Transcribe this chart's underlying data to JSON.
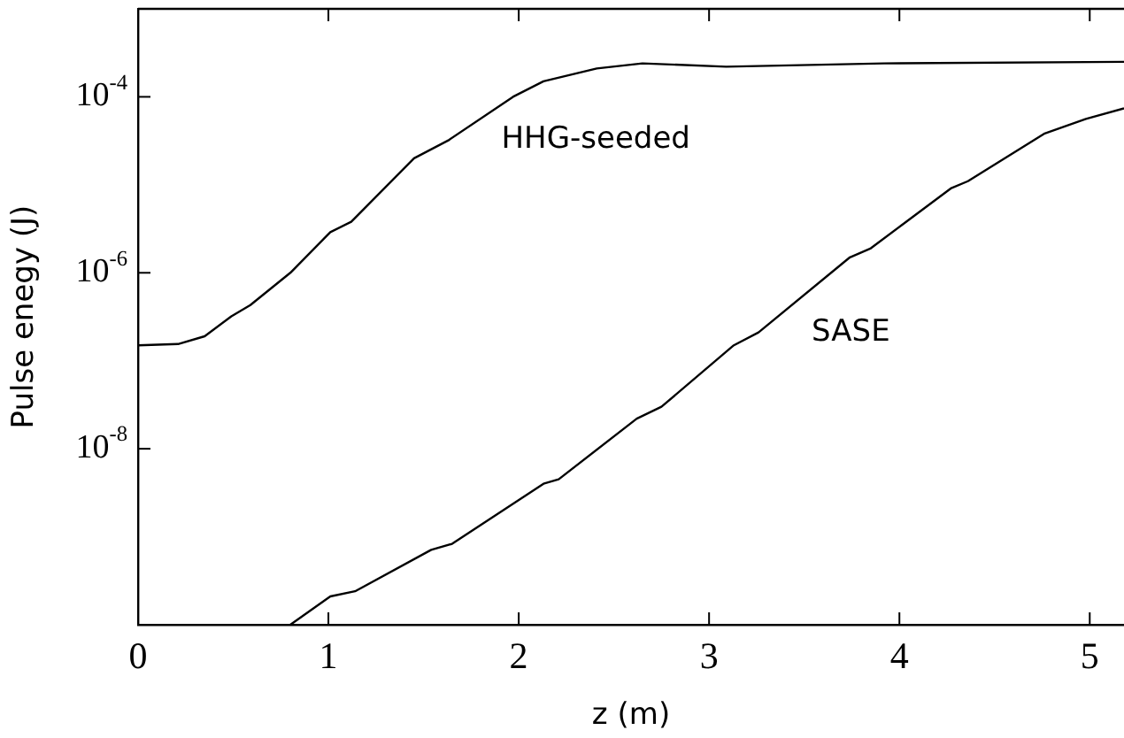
{
  "chart_data": {
    "type": "line",
    "xlabel": "z (m)",
    "ylabel": "Pulse enegy (J)",
    "log": "y",
    "grid": false,
    "legend": false,
    "marker": "none",
    "line_style": "solid",
    "xlim": [
      0,
      5.18
    ],
    "xticks": [
      0,
      1,
      2,
      3,
      4,
      5
    ],
    "ylim": [
      1e-10,
      0.001
    ],
    "yticks": [
      {
        "value": 1e-08,
        "label": "10$^{-8}$"
      },
      {
        "value": 1e-06,
        "label": "10$^{-6}$"
      },
      {
        "value": 0.0001,
        "label": "10$^{-4}$"
      }
    ],
    "series": [
      {
        "name": "HHG-seeded",
        "color": "#000000",
        "x": [
          0,
          0.21,
          0.35,
          0.49,
          0.59,
          0.8,
          1.01,
          1.12,
          1.45,
          1.63,
          1.97,
          2.13,
          2.41,
          2.65,
          3.09,
          3.92,
          5.18
        ],
        "values": [
          1.5e-07,
          1.55e-07,
          1.9e-07,
          3.2e-07,
          4.3e-07,
          1e-06,
          2.9e-06,
          3.8e-06,
          2e-05,
          3.2e-05,
          0.0001,
          0.00015,
          0.00021,
          0.00024,
          0.00022,
          0.00024,
          0.00025
        ]
      },
      {
        "name": "SASE",
        "color": "#000000",
        "x": [
          0.8,
          1.01,
          1.14,
          1.54,
          1.65,
          2.13,
          2.21,
          2.62,
          2.75,
          3.13,
          3.26,
          3.74,
          3.85,
          4.27,
          4.36,
          4.76,
          4.98,
          5.18
        ],
        "values": [
          1e-10,
          2.1e-10,
          2.4e-10,
          7.1e-10,
          8.3e-10,
          4e-09,
          4.5e-09,
          2.2e-08,
          3e-08,
          1.5e-07,
          2.1e-07,
          1.5e-06,
          1.9e-06,
          9.1e-06,
          1.1e-05,
          3.8e-05,
          5.6e-05,
          7.4e-05
        ]
      }
    ]
  }
}
